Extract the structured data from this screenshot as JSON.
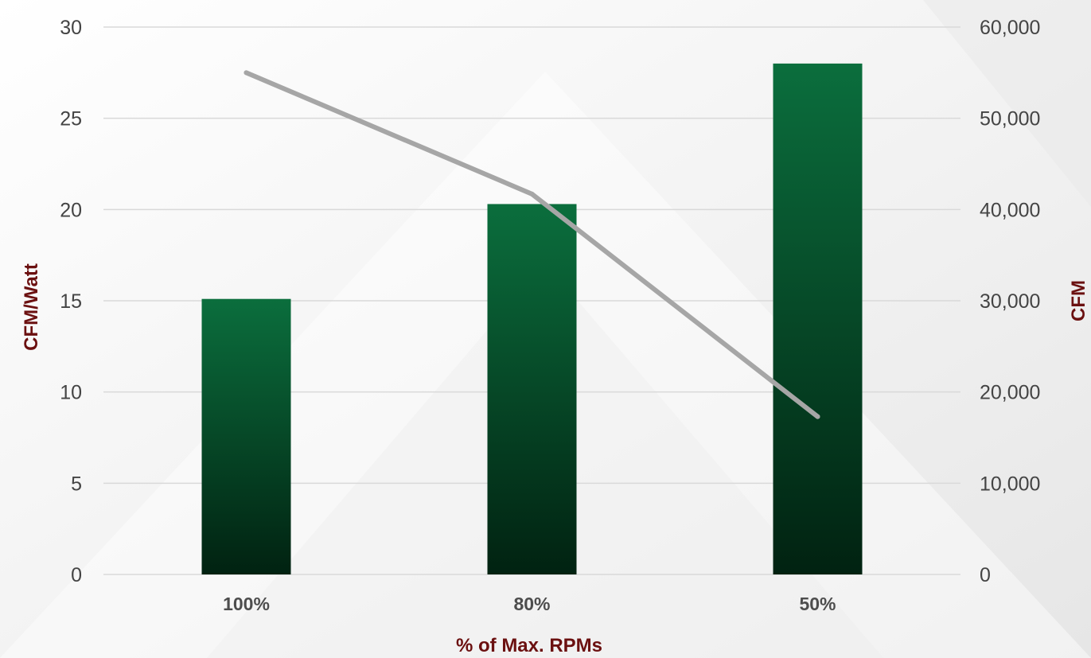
{
  "chart_data": {
    "type": "bar+line",
    "title": "",
    "categories": [
      "100%",
      "80%",
      "50%"
    ],
    "xlabel": "% of Max. RPMs",
    "ylabel_left": "CFM/Watt",
    "ylabel_right": "CFM",
    "ylim_left": [
      0,
      30
    ],
    "ylim_right": [
      0,
      60000
    ],
    "yticks_left": [
      "0",
      "5",
      "10",
      "15",
      "20",
      "25",
      "30"
    ],
    "yticks_right": [
      "0",
      "10,000",
      "20,000",
      "30,000",
      "40,000",
      "50,000",
      "60,000"
    ],
    "series": [
      {
        "type": "bar",
        "axis": "left",
        "values": [
          15.1,
          20.3,
          28.0
        ],
        "color": "#0b6e3d"
      },
      {
        "type": "line",
        "axis": "right",
        "values": [
          55000,
          41700,
          17300
        ],
        "color": "#a6a6a6"
      }
    ],
    "grid": true,
    "legend": "none",
    "colors": {
      "bar_top": "#0b6e3d",
      "bar_bottom": "#012211",
      "line": "#a6a6a6",
      "axis_title": "#6b1010",
      "grid": "#d9d9d9"
    }
  }
}
